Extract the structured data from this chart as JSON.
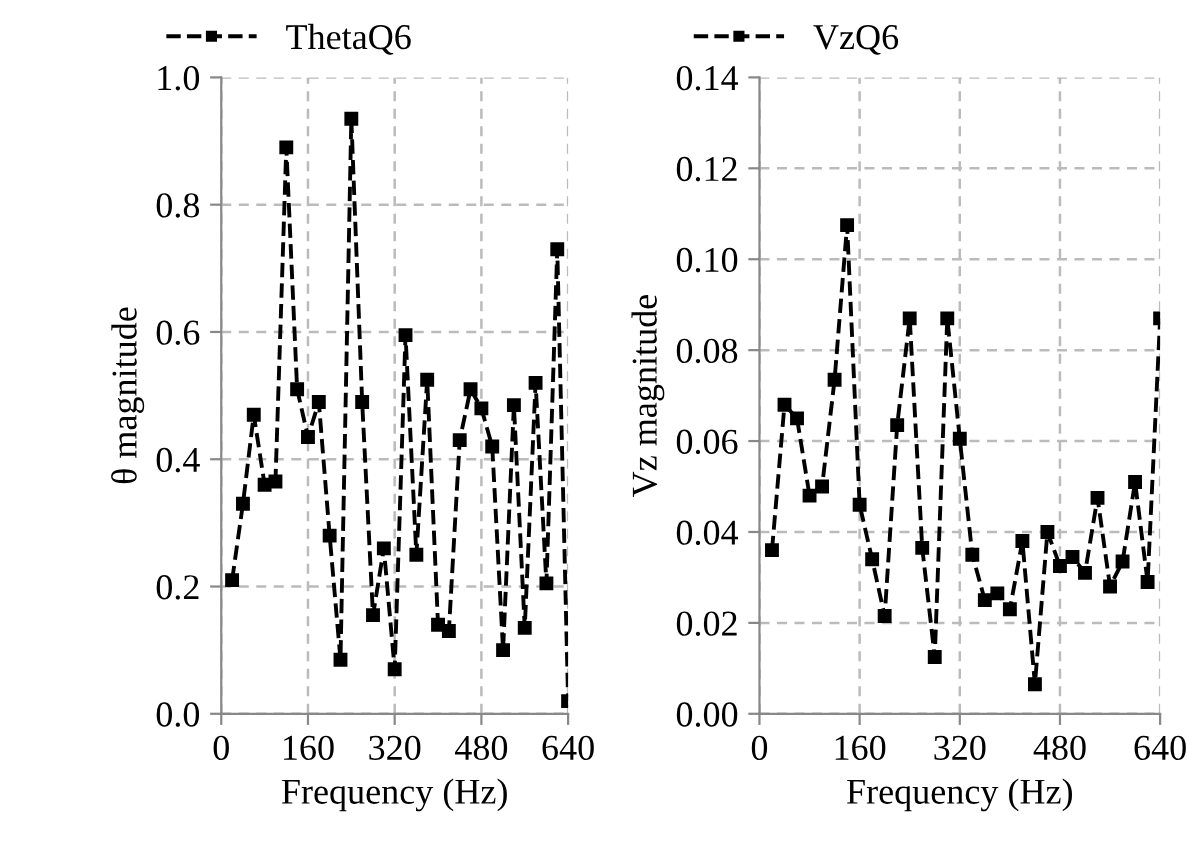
{
  "chart_data": [
    {
      "type": "line",
      "xlabel": "Frequency (Hz)",
      "ylabel": "θ magnitude",
      "legend": "top left",
      "grid": true,
      "marker": "square",
      "line_style": "dashed",
      "x": [
        20,
        40,
        60,
        80,
        100,
        120,
        140,
        160,
        180,
        200,
        220,
        240,
        260,
        280,
        300,
        320,
        340,
        360,
        380,
        400,
        420,
        440,
        460,
        480,
        500,
        520,
        540,
        560,
        580,
        600,
        620,
        640
      ],
      "series": [
        {
          "name": "ThetaQ6",
          "color": "#000000",
          "values": [
            0.21,
            0.33,
            0.47,
            0.36,
            0.365,
            0.89,
            0.51,
            0.435,
            0.49,
            0.28,
            0.085,
            0.935,
            0.49,
            0.155,
            0.26,
            0.07,
            0.595,
            0.25,
            0.525,
            0.14,
            0.13,
            0.43,
            0.51,
            0.48,
            0.42,
            0.1,
            0.485,
            0.135,
            0.52,
            0.205,
            0.73,
            0.02
          ]
        }
      ],
      "xlim": [
        0,
        640
      ],
      "xticks": [
        0,
        160,
        320,
        480,
        640
      ],
      "ylim": [
        0,
        1
      ],
      "yticks": [
        {
          "value": 0,
          "label": "0.0"
        },
        0.2,
        0.4,
        0.6,
        0.8,
        {
          "value": 1,
          "label": "1.0"
        }
      ]
    },
    {
      "type": "line",
      "xlabel": "Frequency (Hz)",
      "ylabel": "Vz magnitude",
      "legend": "top left",
      "grid": true,
      "marker": "square",
      "line_style": "dashed",
      "x": [
        20,
        40,
        60,
        80,
        100,
        120,
        140,
        160,
        180,
        200,
        220,
        240,
        260,
        280,
        300,
        320,
        340,
        360,
        380,
        400,
        420,
        440,
        460,
        480,
        500,
        520,
        540,
        560,
        580,
        600,
        620,
        640
      ],
      "series": [
        {
          "name": "VzQ6",
          "color": "#000000",
          "values": [
            0.036,
            0.068,
            0.065,
            0.048,
            0.05,
            0.0735,
            0.1075,
            0.046,
            0.034,
            0.0215,
            0.0635,
            0.087,
            0.0365,
            0.0125,
            0.087,
            0.0605,
            0.035,
            0.025,
            0.0265,
            0.023,
            0.038,
            0.0065,
            0.04,
            0.0325,
            0.0345,
            0.031,
            0.0475,
            0.028,
            0.0335,
            0.051,
            0.029,
            0.087
          ]
        }
      ],
      "xlim": [
        0,
        640
      ],
      "xticks": [
        0,
        160,
        320,
        480,
        640
      ],
      "ylim": [
        0,
        0.14
      ],
      "yticks": [
        {
          "value": 0,
          "label": "0.00"
        },
        0.02,
        0.04,
        0.06,
        0.08,
        {
          "value": 0.1,
          "label": "0.10"
        },
        0.12,
        0.14
      ]
    }
  ]
}
